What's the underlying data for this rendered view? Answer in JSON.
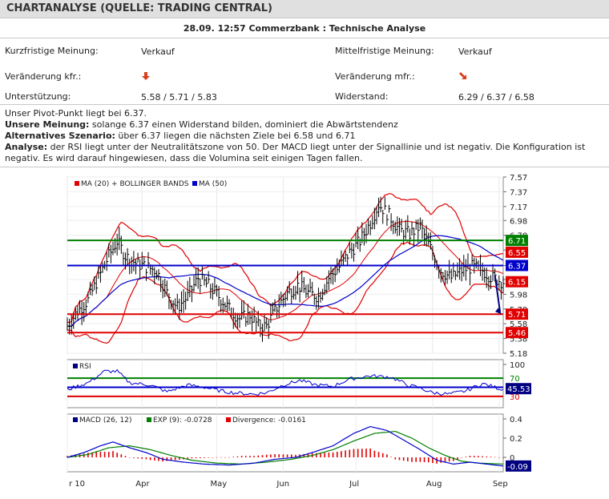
{
  "header": {
    "title": "CHARTANALYSE (QUELLE: TRADING CENTRAL)"
  },
  "subheader": "28.09. 12:57 Commerzbank : Technische Analyse",
  "opinion": {
    "short_label": "Kurzfristige Meinung:",
    "short_value": "Verkauf",
    "mid_label": "Mittelfristige Meinung:",
    "mid_value": "Verkauf",
    "change_short_label": "Veränderung kfr.:",
    "change_short_icon": "arrow-down-icon",
    "change_mid_label": "Veränderung mfr.:",
    "change_mid_icon": "arrow-down-right-icon",
    "support_label": "Unterstützung:",
    "support_value": "5.58 / 5.71 / 5.83",
    "resistance_label": "Widerstand:",
    "resistance_value": "6.29 / 6.37 / 6.58"
  },
  "analysis": {
    "pivot": "Unser Pivot-Punkt liegt bei 6.37.",
    "our_opinion_label": "Unsere Meinung:",
    "our_opinion_text": " solange 6.37 einen Widerstand bilden, dominiert die Abwärtstendenz",
    "alt_label": "Alternatives Szenario:",
    "alt_text": " über 6.37 liegen die nächsten Ziele bei 6.58 und 6.71",
    "analysis_label": "Analyse:",
    "analysis_text": " der RSI liegt unter der Neutralitätszone von 50. Der MACD liegt unter der Signallinie und ist negativ. Die Konfiguration ist negativ. Es wird darauf hingewiesen, dass die Volumina seit einigen Tagen fallen."
  },
  "colors": {
    "up": "#e00000",
    "down": "#0000cc",
    "green": "#008000",
    "red": "#e00000",
    "blue": "#0000cc",
    "navy": "#000080"
  },
  "chart_data": {
    "price": {
      "type": "bar",
      "legend": [
        "MA (20) + BOLLINGER BANDS",
        "MA (50)"
      ],
      "yticks": [
        "7.57",
        "7.37",
        "7.17",
        "6.98",
        "6.78",
        "6.58",
        "6.37",
        "6.18",
        "5.98",
        "5.78",
        "5.58",
        "5.38",
        "5.18"
      ],
      "ylim": [
        5.18,
        7.57
      ],
      "levels": [
        {
          "label": "6.71",
          "value": 6.71,
          "color": "#008000"
        },
        {
          "label": "6.55",
          "value": 6.55,
          "color": "#e00000"
        },
        {
          "label": "6.37",
          "value": 6.37,
          "color": "#0000cc"
        },
        {
          "label": "6.15",
          "value": 6.15,
          "color": "#e00000"
        },
        {
          "label": "5.71",
          "value": 5.71,
          "color": "#e00000"
        },
        {
          "label": "5.46",
          "value": 5.46,
          "color": "#e00000"
        }
      ],
      "close_trend": [
        [
          0,
          5.55
        ],
        [
          5,
          5.75
        ],
        [
          10,
          5.9
        ],
        [
          15,
          6.2
        ],
        [
          20,
          6.5
        ],
        [
          24,
          6.7
        ],
        [
          28,
          6.5
        ],
        [
          33,
          6.4
        ],
        [
          38,
          6.35
        ],
        [
          43,
          6.3
        ],
        [
          48,
          6.0
        ],
        [
          53,
          5.8
        ],
        [
          58,
          5.95
        ],
        [
          63,
          6.2
        ],
        [
          68,
          6.1
        ],
        [
          73,
          5.95
        ],
        [
          78,
          5.78
        ],
        [
          83,
          5.65
        ],
        [
          88,
          5.7
        ],
        [
          92,
          5.55
        ],
        [
          96,
          5.55
        ],
        [
          101,
          5.8
        ],
        [
          106,
          6.0
        ],
        [
          111,
          6.1
        ],
        [
          116,
          6.0
        ],
        [
          121,
          5.95
        ],
        [
          126,
          6.2
        ],
        [
          131,
          6.35
        ],
        [
          136,
          6.55
        ],
        [
          141,
          6.7
        ],
        [
          146,
          6.95
        ],
        [
          150,
          7.2
        ],
        [
          155,
          7.05
        ],
        [
          160,
          6.85
        ],
        [
          165,
          6.8
        ],
        [
          170,
          6.9
        ],
        [
          175,
          6.6
        ],
        [
          180,
          6.3
        ],
        [
          185,
          6.2
        ],
        [
          190,
          6.3
        ],
        [
          195,
          6.35
        ],
        [
          200,
          6.3
        ],
        [
          205,
          6.2
        ],
        [
          210,
          6.15
        ]
      ]
    },
    "rsi": {
      "label": "RSI",
      "yticks": [
        "100",
        "70",
        "30"
      ],
      "ylim": [
        0,
        100
      ],
      "levels": [
        70,
        50,
        30
      ],
      "current": "45.53",
      "trend": [
        [
          0,
          45
        ],
        [
          10,
          60
        ],
        [
          18,
          85
        ],
        [
          24,
          85
        ],
        [
          30,
          60
        ],
        [
          40,
          55
        ],
        [
          48,
          40
        ],
        [
          58,
          55
        ],
        [
          66,
          50
        ],
        [
          74,
          42
        ],
        [
          80,
          38
        ],
        [
          90,
          35
        ],
        [
          96,
          38
        ],
        [
          104,
          55
        ],
        [
          112,
          65
        ],
        [
          120,
          55
        ],
        [
          128,
          52
        ],
        [
          136,
          68
        ],
        [
          146,
          75
        ],
        [
          156,
          72
        ],
        [
          164,
          55
        ],
        [
          170,
          48
        ],
        [
          176,
          38
        ],
        [
          184,
          35
        ],
        [
          192,
          42
        ],
        [
          200,
          58
        ],
        [
          206,
          50
        ],
        [
          210,
          45
        ]
      ]
    },
    "macd": {
      "legend": [
        "MACD (26, 12)",
        "EXP (9): -0.0728",
        "Divergence: -0.0161"
      ],
      "yticks": [
        "0.4",
        "0.2",
        "0"
      ],
      "ylim": [
        -0.15,
        0.45
      ],
      "current": "-0.09",
      "macd_line": [
        [
          0,
          0.0
        ],
        [
          8,
          0.05
        ],
        [
          16,
          0.12
        ],
        [
          22,
          0.16
        ],
        [
          30,
          0.1
        ],
        [
          38,
          0.05
        ],
        [
          46,
          -0.02
        ],
        [
          56,
          -0.05
        ],
        [
          66,
          -0.07
        ],
        [
          78,
          -0.08
        ],
        [
          90,
          -0.06
        ],
        [
          100,
          -0.02
        ],
        [
          110,
          0.0
        ],
        [
          118,
          0.05
        ],
        [
          128,
          0.12
        ],
        [
          138,
          0.25
        ],
        [
          146,
          0.32
        ],
        [
          154,
          0.28
        ],
        [
          162,
          0.18
        ],
        [
          170,
          0.08
        ],
        [
          178,
          -0.03
        ],
        [
          186,
          -0.07
        ],
        [
          194,
          -0.05
        ],
        [
          202,
          -0.07
        ],
        [
          210,
          -0.09
        ]
      ],
      "signal_line": [
        [
          0,
          0.0
        ],
        [
          10,
          0.03
        ],
        [
          20,
          0.1
        ],
        [
          30,
          0.12
        ],
        [
          40,
          0.08
        ],
        [
          50,
          0.02
        ],
        [
          60,
          -0.03
        ],
        [
          72,
          -0.06
        ],
        [
          84,
          -0.07
        ],
        [
          96,
          -0.05
        ],
        [
          108,
          -0.02
        ],
        [
          118,
          0.02
        ],
        [
          128,
          0.08
        ],
        [
          138,
          0.17
        ],
        [
          148,
          0.25
        ],
        [
          158,
          0.27
        ],
        [
          166,
          0.2
        ],
        [
          174,
          0.1
        ],
        [
          182,
          0.02
        ],
        [
          190,
          -0.04
        ],
        [
          198,
          -0.06
        ],
        [
          210,
          -0.07
        ]
      ]
    },
    "months": [
      "r 10",
      "Apr",
      "May",
      "Jun",
      "Jul",
      "Aug",
      "Sep"
    ]
  }
}
